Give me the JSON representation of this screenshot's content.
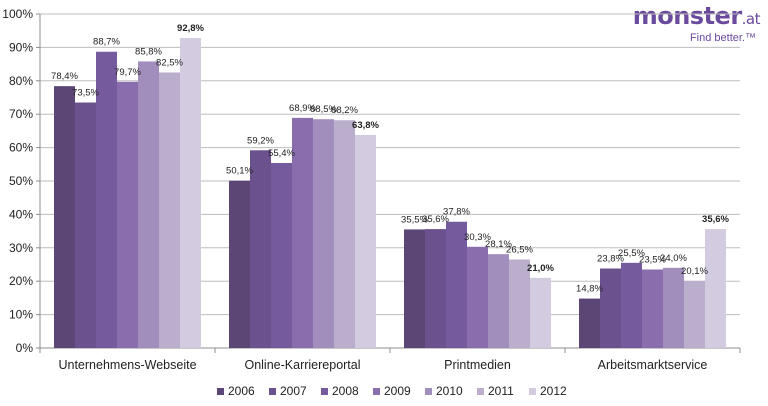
{
  "logo": {
    "name": "monster",
    "tld": ".at",
    "tagline": "Find better.™"
  },
  "chart_data": {
    "type": "bar",
    "title": "",
    "xlabel": "",
    "ylabel": "",
    "ylim": [
      0,
      100
    ],
    "yticks": [
      "0%",
      "10%",
      "20%",
      "30%",
      "40%",
      "50%",
      "60%",
      "70%",
      "80%",
      "90%",
      "100%"
    ],
    "grid": true,
    "legend": "bottom",
    "categories": [
      "Unternehmens-Webseite",
      "Online-Karriereportal",
      "Printmedien",
      "Arbeitsmarktservice"
    ],
    "series": [
      {
        "name": "2006",
        "values": [
          78.4,
          50.1,
          35.5,
          14.8
        ],
        "labels": [
          "78,4%",
          "50,1%",
          "35,5%",
          "14,8%"
        ],
        "color": "#5b4675"
      },
      {
        "name": "2007",
        "values": [
          73.5,
          59.2,
          35.6,
          23.8
        ],
        "labels": [
          "73,5%",
          "59,2%",
          "35,6%",
          "23,8%"
        ],
        "color": "#6c518f"
      },
      {
        "name": "2008",
        "values": [
          88.7,
          55.4,
          37.8,
          25.5
        ],
        "labels": [
          "88,7%",
          "55,4%",
          "37,8%",
          "25,5%"
        ],
        "color": "#765a9e"
      },
      {
        "name": "2009",
        "values": [
          79.7,
          68.9,
          30.3,
          23.5
        ],
        "labels": [
          "79,7%",
          "68,9%",
          "30,3%",
          "23,5%"
        ],
        "color": "#8a6dad"
      },
      {
        "name": "2010",
        "values": [
          85.8,
          68.5,
          28.1,
          24.0
        ],
        "labels": [
          "85,8%",
          "68,5%",
          "28,1%",
          "24,0%"
        ],
        "color": "#a28ebc"
      },
      {
        "name": "2011",
        "values": [
          82.5,
          68.2,
          26.5,
          20.1
        ],
        "labels": [
          "82,5%",
          "68,2%",
          "26,5%",
          "20,1%"
        ],
        "color": "#bbaecd"
      },
      {
        "name": "2012",
        "values": [
          92.8,
          63.8,
          21.0,
          35.6
        ],
        "labels": [
          "92,8%",
          "63,8%",
          "21,0%",
          "35,6%"
        ],
        "color": "#d3cbe0",
        "bold_labels": true
      }
    ]
  }
}
